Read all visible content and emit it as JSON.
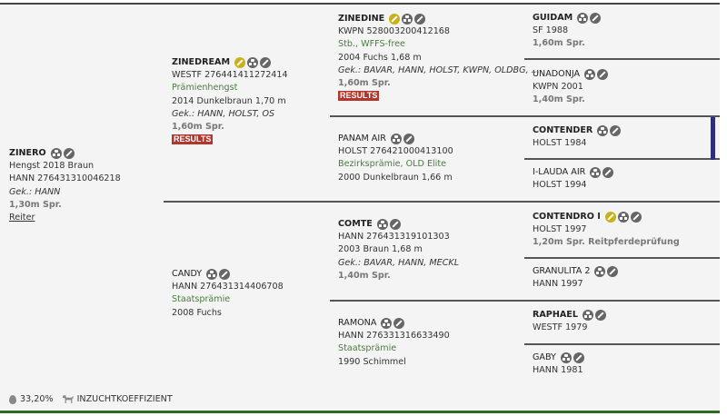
{
  "colors": {
    "accent_bar": "#2e2f7a",
    "results_badge": "#b3362c",
    "highlight_icon": "#c9b11b",
    "footer_line": "#2e6b22"
  },
  "subject": {
    "name": "ZINERO",
    "lines": [
      "Hengst 2018 Braun",
      "HANN 276431310046218"
    ],
    "gek": "Gek.: HANN",
    "spr": "1,30m Spr.",
    "link": "Reiter"
  },
  "sire": {
    "name": "ZINEDREAM",
    "id": "WESTF 276441411272414",
    "award": "Prämienhengst",
    "info": "2014 Dunkelbraun 1,70 m",
    "gek": "Gek.: HANN, HOLST, OS",
    "spr": "1,60m Spr.",
    "results": "RESULTS"
  },
  "dam": {
    "name": "CANDY",
    "id": "HANN 276431314406708",
    "award": "Staatsprämie",
    "info": "2008 Fuchs"
  },
  "ss": {
    "name": "ZINEDINE",
    "id": "KWPN 528003200412168",
    "award": "Stb., WFFS-free",
    "info": "2004 Fuchs 1,68 m",
    "gek": "Gek.: BAVAR, HANN, HOLST, KWPN, OLDBG, ...",
    "spr": "1,60m Spr.",
    "results": "RESULTS"
  },
  "sd": {
    "name": "PANAM AIR",
    "id": "HOLST 276421000413100",
    "award": "Bezirksprämie, OLD Elite",
    "info": "2000 Dunkelbraun 1,66 m"
  },
  "ds": {
    "name": "COMTE",
    "id": "HANN 276431319101303",
    "info": "2003 Braun 1,68 m",
    "gek": "Gek.: BAVAR, HANN, MECKL",
    "spr": "1,40m Spr."
  },
  "dd": {
    "name": "RAMONA",
    "id": "HANN 276331316633490",
    "award": "Staatsprämie",
    "info": "1990 Schimmel"
  },
  "g": [
    {
      "name": "GUIDAM",
      "info": "SF 1988",
      "spr": "1,60m Spr."
    },
    {
      "name": "UNADONJA",
      "info": "KWPN 2001",
      "spr": "1,40m Spr."
    },
    {
      "name": "CONTENDER",
      "info": "HOLST 1984"
    },
    {
      "name": "I-LAUDA AIR",
      "info": "HOLST 1994"
    },
    {
      "name": "CONTENDRO I",
      "info": "HOLST 1997",
      "spr": "1,20m Spr. Reitpferdeprüfung"
    },
    {
      "name": "GRANULITA 2",
      "info": "HANN 1997"
    },
    {
      "name": "RAPHAEL",
      "info": "WESTF 1979"
    },
    {
      "name": "GABY",
      "info": "HANN 1981"
    }
  ],
  "footer": {
    "percent": "33,20%",
    "label": "INZUCHTKOEFFIZIENT"
  }
}
